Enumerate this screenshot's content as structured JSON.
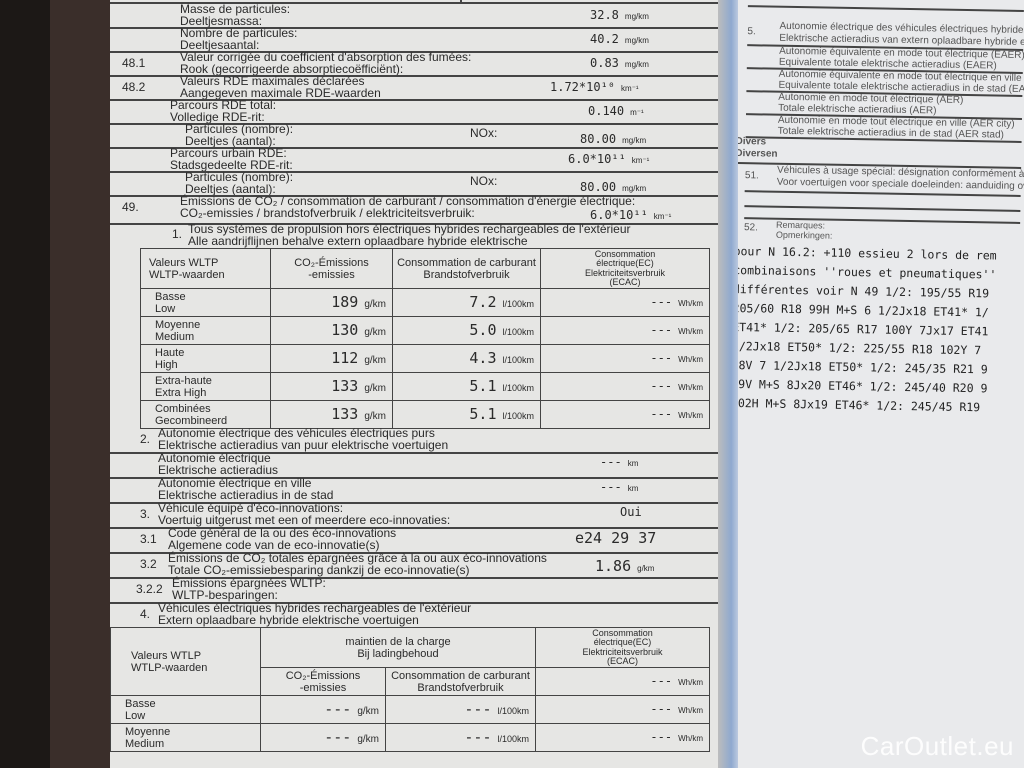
{
  "left_page": {
    "rows": [
      {
        "fr": "Masse de particules:",
        "nl": "Deeltjesmassa:",
        "value": "32.8",
        "unit": "mg/km"
      },
      {
        "fr": "Nombre de particules:",
        "nl": "Deeltjesaantal:",
        "value": "40.2",
        "unit": "mg/km"
      },
      {
        "num": "48.1",
        "fr": "Valeur corrigée du coefficient d'absorption des fumées:",
        "nl": "Rook (gecorrigeerde absorptiecoëfficiënt):",
        "value": "0.83",
        "unit": "mg/km"
      },
      {
        "num": "48.2",
        "fr": "Valeurs RDE maximales déclarées",
        "nl": "Aangegeven maximale RDE-waarden",
        "value": "1.72*10¹⁰",
        "unit": "km⁻¹"
      },
      {
        "fr": "Parcours RDE total:",
        "nl": "Volledige RDE-rit:",
        "value": "0.140",
        "unit": "m⁻¹"
      },
      {
        "fr": "Particules (nombre):",
        "nl": "Deeltjes (aantal):",
        "nox": "NOx:",
        "value": "80.00",
        "unit": "mg/km"
      },
      {
        "fr": "Parcours urbain RDE:",
        "nl": "Stadsgedeelte RDE-rit:",
        "value": "6.0*10¹¹",
        "unit": "km⁻¹"
      },
      {
        "fr": "Particules (nombre):",
        "nl": "Deeltjes (aantal):",
        "nox": "NOx:",
        "value": "80.00",
        "unit": "mg/km"
      },
      {
        "num": "49.",
        "fr": "Émissions de CO₂ / consommation de carburant / consommation d'énergie électrique:",
        "nl": "CO₂-emissies / brandstofverbruik / elektriciteitsverbruik:",
        "value": "6.0*10¹¹",
        "unit": "km⁻¹"
      }
    ],
    "s1": {
      "num": "1.",
      "fr": "Tous systèmes de propulsion hors électriques hybrides rechargeables de l'extérieur",
      "nl": "Alle aandrijflijnen behalve extern oplaadbare hybride elektrische"
    },
    "table1": {
      "headers": [
        "Valeurs WLTP\nWLTP-waarden",
        "CO₂-Émissions\n-emissies",
        "Consommation de carburant\nBrandstofverbruik",
        "Consommation\nélectrique(EC)\nElektriciteitsverbruik\n(ECAC)"
      ],
      "rows": [
        {
          "label_fr": "Basse",
          "label_nl": "Low",
          "co2": "189",
          "co2_unit": "g/km",
          "fuel": "7.2",
          "fuel_unit": "l/100km",
          "ec": "---",
          "ec_unit": "Wh/km"
        },
        {
          "label_fr": "Moyenne",
          "label_nl": "Medium",
          "co2": "130",
          "co2_unit": "g/km",
          "fuel": "5.0",
          "fuel_unit": "l/100km",
          "ec": "---",
          "ec_unit": "Wh/km"
        },
        {
          "label_fr": "Haute",
          "label_nl": "High",
          "co2": "112",
          "co2_unit": "g/km",
          "fuel": "4.3",
          "fuel_unit": "l/100km",
          "ec": "---",
          "ec_unit": "Wh/km"
        },
        {
          "label_fr": "Extra-haute",
          "label_nl": "Extra High",
          "co2": "133",
          "co2_unit": "g/km",
          "fuel": "5.1",
          "fuel_unit": "l/100km",
          "ec": "---",
          "ec_unit": "Wh/km"
        },
        {
          "label_fr": "Combinées",
          "label_nl": "Gecombineerd",
          "co2": "133",
          "co2_unit": "g/km",
          "fuel": "5.1",
          "fuel_unit": "l/100km",
          "ec": "---",
          "ec_unit": "Wh/km"
        }
      ]
    },
    "s2": {
      "num": "2.",
      "fr": "Autonomie électrique des véhicules électriques purs",
      "nl": "Elektrische actieradius van puur elektrische voertuigen"
    },
    "s2_rows": [
      {
        "fr": "Autonomie électrique",
        "nl": "Elektrische actieradius",
        "value": "---",
        "unit": "km"
      },
      {
        "fr": "Autonomie électrique en ville",
        "nl": "Elektrische actieradius in de stad",
        "value": "---",
        "unit": "km"
      }
    ],
    "s3": {
      "num": "3.",
      "fr": "Véhicule équipé d'éco-innovations:",
      "nl": "Voertuig uitgerust met een of meerdere eco-innovaties:",
      "value": "Oui"
    },
    "s31": {
      "num": "3.1",
      "fr": "Code général de la ou des éco-innovations",
      "nl": "Algemene code van de eco-innovatie(s)",
      "value": "e24 29 37"
    },
    "s32": {
      "num": "3.2",
      "fr": "Émissions de CO₂ totales épargnées grâce à la ou aux éco-innovations",
      "nl": "Totale CO₂-emissiebesparing dankzij de eco-innovatie(s)",
      "value": "1.86",
      "unit": "g/km"
    },
    "s322": {
      "num": "3.2.2",
      "fr": "Émissions épargnées WLTP:",
      "nl": "WLTP-besparingen:"
    },
    "s4": {
      "num": "4.",
      "fr": "Véhicules électriques hybrides rechargeables de l'extérieur",
      "nl": "Extern oplaadbare hybride elektrische voertuigen"
    },
    "table4": {
      "h_label": "Valeurs WTLP\nWTLP-waarden",
      "h_group": "maintien de la charge\nBij ladingbehoud",
      "h_co2": "CO₂-Émissions\n-emissies",
      "h_fuel": "Consommation de carburant\nBrandstofverbruik",
      "h_ec": "Consommation\nélectrique(EC)\nElektriciteitsverbruik\n(ECAC)",
      "h_ec_value": "---",
      "h_ec_unit": "Wh/km",
      "rows": [
        {
          "label_fr": "Basse",
          "label_nl": "Low",
          "co2": "---",
          "co2_unit": "g/km",
          "fuel": "---",
          "fuel_unit": "l/100km",
          "ec": "---",
          "ec_unit": "Wh/km"
        },
        {
          "label_fr": "Moyenne",
          "label_nl": "Medium",
          "co2": "---",
          "co2_unit": "g/km",
          "fuel": "---",
          "fuel_unit": "l/100km",
          "ec": "---",
          "ec_unit": "Wh/km"
        }
      ]
    }
  },
  "right_page": {
    "s5": {
      "num": "5.",
      "fr": "Autonomie électrique des véhicules électriques hybrides r",
      "nl": "Elektrische actieradius van extern oplaadbare hybride elek"
    },
    "s5_rows": [
      {
        "fr": "Autonomie équivalente en mode tout électrique (EAER)",
        "nl": "Equivalente totale elektrische actieradius (EAER)"
      },
      {
        "fr": "Autonomie équivalente en mode tout électrique en ville (E",
        "nl": "Equivalente totale elektrische actieradius in de stad (EAE"
      },
      {
        "fr": "Autonomie en mode tout électrique (AER)",
        "nl": "Totale elektrische actieradius (AER)"
      },
      {
        "fr": "Autonomie en mode tout électrique en ville (AER city)",
        "nl": "Totale elektrische actieradius in de stad (AER stad)"
      }
    ],
    "divers_fr": "Divers",
    "divers_nl": "Diversen",
    "s51": {
      "num": "51.",
      "fr": "Véhicules à usage spécial: désignation conformément à l'a",
      "nl": "Voor voertuigen voor speciale doeleinden: aanduiding ove"
    },
    "s52": {
      "num": "52.",
      "fr": "Remarques:",
      "nl": "Opmerkingen:"
    },
    "remarks": [
      "pour N  16.2: +110 essieu 2 lors de rem",
      "combinaisons ''roues et pneumatiques''",
      "différentes voir N 49  1/2: 195/55 R19",
      "205/60 R18 99H M+S 6 1/2Jx18 ET41*  1/",
      "ET41*  1/2: 205/65 R17 100Y 7Jx17 ET41",
      "1/2Jx18 ET50*  1/2: 225/55 R18 102Y 7",
      "98V 7 1/2Jx18 ET50*  1/2: 245/35 R21 9",
      "99V M+S 8Jx20 ET46*  1/2: 245/40 R20 9",
      "102H M+S 8Jx19 ET46*  1/2: 245/45 R19"
    ]
  },
  "watermark": "CarOutlet.eu"
}
